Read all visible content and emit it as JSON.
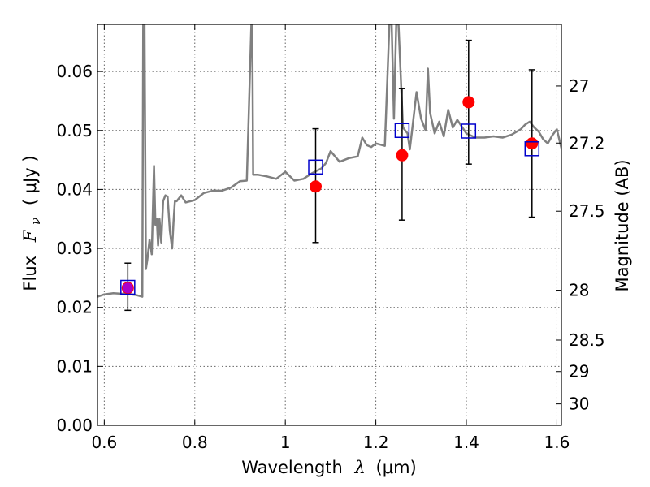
{
  "chart_data": {
    "type": "scatter",
    "xlabel_prefix": "Wavelength",
    "xlabel_symbol": "λ",
    "xlabel_unit": "(μm)",
    "ylabel_prefix": "Flux",
    "ylabel_symbol": "F",
    "ylabel_subscript": "ν",
    "ylabel_unit": "( μJy )",
    "y2label": "Magnitude (AB)",
    "xlim": [
      0.585,
      1.61
    ],
    "ylim": [
      0.0,
      0.068
    ],
    "grid": true,
    "x_ticks": [
      0.6,
      0.8,
      1.0,
      1.2,
      1.4,
      1.6
    ],
    "x_tick_labels": [
      "0.6",
      "0.8",
      "1",
      "1.2",
      "1.4",
      "1.6"
    ],
    "y_ticks": [
      0.0,
      0.01,
      0.02,
      0.03,
      0.04,
      0.05,
      0.06
    ],
    "y_tick_labels": [
      "0.00",
      "0.01",
      "0.02",
      "0.03",
      "0.04",
      "0.05",
      "0.06"
    ],
    "y2_ticks": [
      {
        "mag": 27.0,
        "label": "27"
      },
      {
        "mag": 27.2,
        "label": "27.2"
      },
      {
        "mag": 27.5,
        "label": "27.5"
      },
      {
        "mag": 28.0,
        "label": "28"
      },
      {
        "mag": 28.5,
        "label": "28.5"
      },
      {
        "mag": 29.0,
        "label": "29"
      },
      {
        "mag": 30.0,
        "label": "30"
      }
    ],
    "observed_points": {
      "color": "#ff0000",
      "x": [
        0.652,
        1.067,
        1.258,
        1.405,
        1.545
      ],
      "y": [
        0.0233,
        0.0405,
        0.0458,
        0.0548,
        0.0478
      ],
      "yerr_low": [
        0.0038,
        0.0095,
        0.011,
        0.0105,
        0.0125
      ],
      "yerr_high": [
        0.0042,
        0.0098,
        0.0113,
        0.0105,
        0.0125
      ]
    },
    "model_photometry": {
      "color": "#0000cc",
      "x": [
        0.652,
        1.067,
        1.258,
        1.405,
        1.545
      ],
      "y": [
        0.0234,
        0.0438,
        0.05,
        0.0499,
        0.0469
      ]
    },
    "overlap_marker": {
      "color": "#aa00cc",
      "x": 0.652,
      "y": 0.0233
    },
    "model_spectrum": {
      "color": "#808080",
      "x": [
        0.585,
        0.6,
        0.62,
        0.64,
        0.65,
        0.66,
        0.67,
        0.68,
        0.684,
        0.686,
        0.6875,
        0.689,
        0.692,
        0.695,
        0.7,
        0.705,
        0.71,
        0.713,
        0.716,
        0.719,
        0.722,
        0.726,
        0.73,
        0.735,
        0.74,
        0.745,
        0.75,
        0.753,
        0.756,
        0.76,
        0.77,
        0.78,
        0.8,
        0.82,
        0.84,
        0.86,
        0.88,
        0.9,
        0.915,
        0.925,
        0.927,
        0.929,
        0.933,
        0.94,
        0.96,
        0.98,
        1.0,
        1.02,
        1.04,
        1.06,
        1.08,
        1.09,
        1.1,
        1.12,
        1.14,
        1.16,
        1.17,
        1.18,
        1.19,
        1.2,
        1.22,
        1.23,
        1.235,
        1.24,
        1.245,
        1.25,
        1.26,
        1.27,
        1.275,
        1.28,
        1.29,
        1.3,
        1.31,
        1.315,
        1.32,
        1.33,
        1.34,
        1.35,
        1.36,
        1.37,
        1.38,
        1.4,
        1.42,
        1.44,
        1.46,
        1.48,
        1.5,
        1.52,
        1.53,
        1.54,
        1.55,
        1.56,
        1.57,
        1.58,
        1.59,
        1.6,
        1.61
      ],
      "y": [
        0.0218,
        0.0222,
        0.0224,
        0.0223,
        0.0224,
        0.0222,
        0.0221,
        0.0219,
        0.0218,
        0.068,
        0.068,
        0.068,
        0.0265,
        0.028,
        0.0315,
        0.029,
        0.044,
        0.034,
        0.035,
        0.0305,
        0.035,
        0.031,
        0.038,
        0.039,
        0.0388,
        0.033,
        0.03,
        0.0345,
        0.038,
        0.038,
        0.039,
        0.0378,
        0.0382,
        0.0394,
        0.0398,
        0.0398,
        0.0403,
        0.0414,
        0.0415,
        0.068,
        0.068,
        0.0425,
        0.0425,
        0.0425,
        0.0422,
        0.0418,
        0.043,
        0.0415,
        0.0418,
        0.0428,
        0.0436,
        0.0445,
        0.0465,
        0.0447,
        0.0453,
        0.0456,
        0.0488,
        0.0475,
        0.0472,
        0.0478,
        0.0474,
        0.068,
        0.068,
        0.052,
        0.068,
        0.068,
        0.0505,
        0.0495,
        0.0468,
        0.05,
        0.0565,
        0.052,
        0.05,
        0.0605,
        0.053,
        0.0495,
        0.0515,
        0.049,
        0.0535,
        0.0505,
        0.0518,
        0.0495,
        0.0488,
        0.0488,
        0.049,
        0.0488,
        0.0493,
        0.0502,
        0.051,
        0.0515,
        0.0505,
        0.0498,
        0.0485,
        0.0478,
        0.0492,
        0.0502,
        0.047
      ]
    }
  }
}
